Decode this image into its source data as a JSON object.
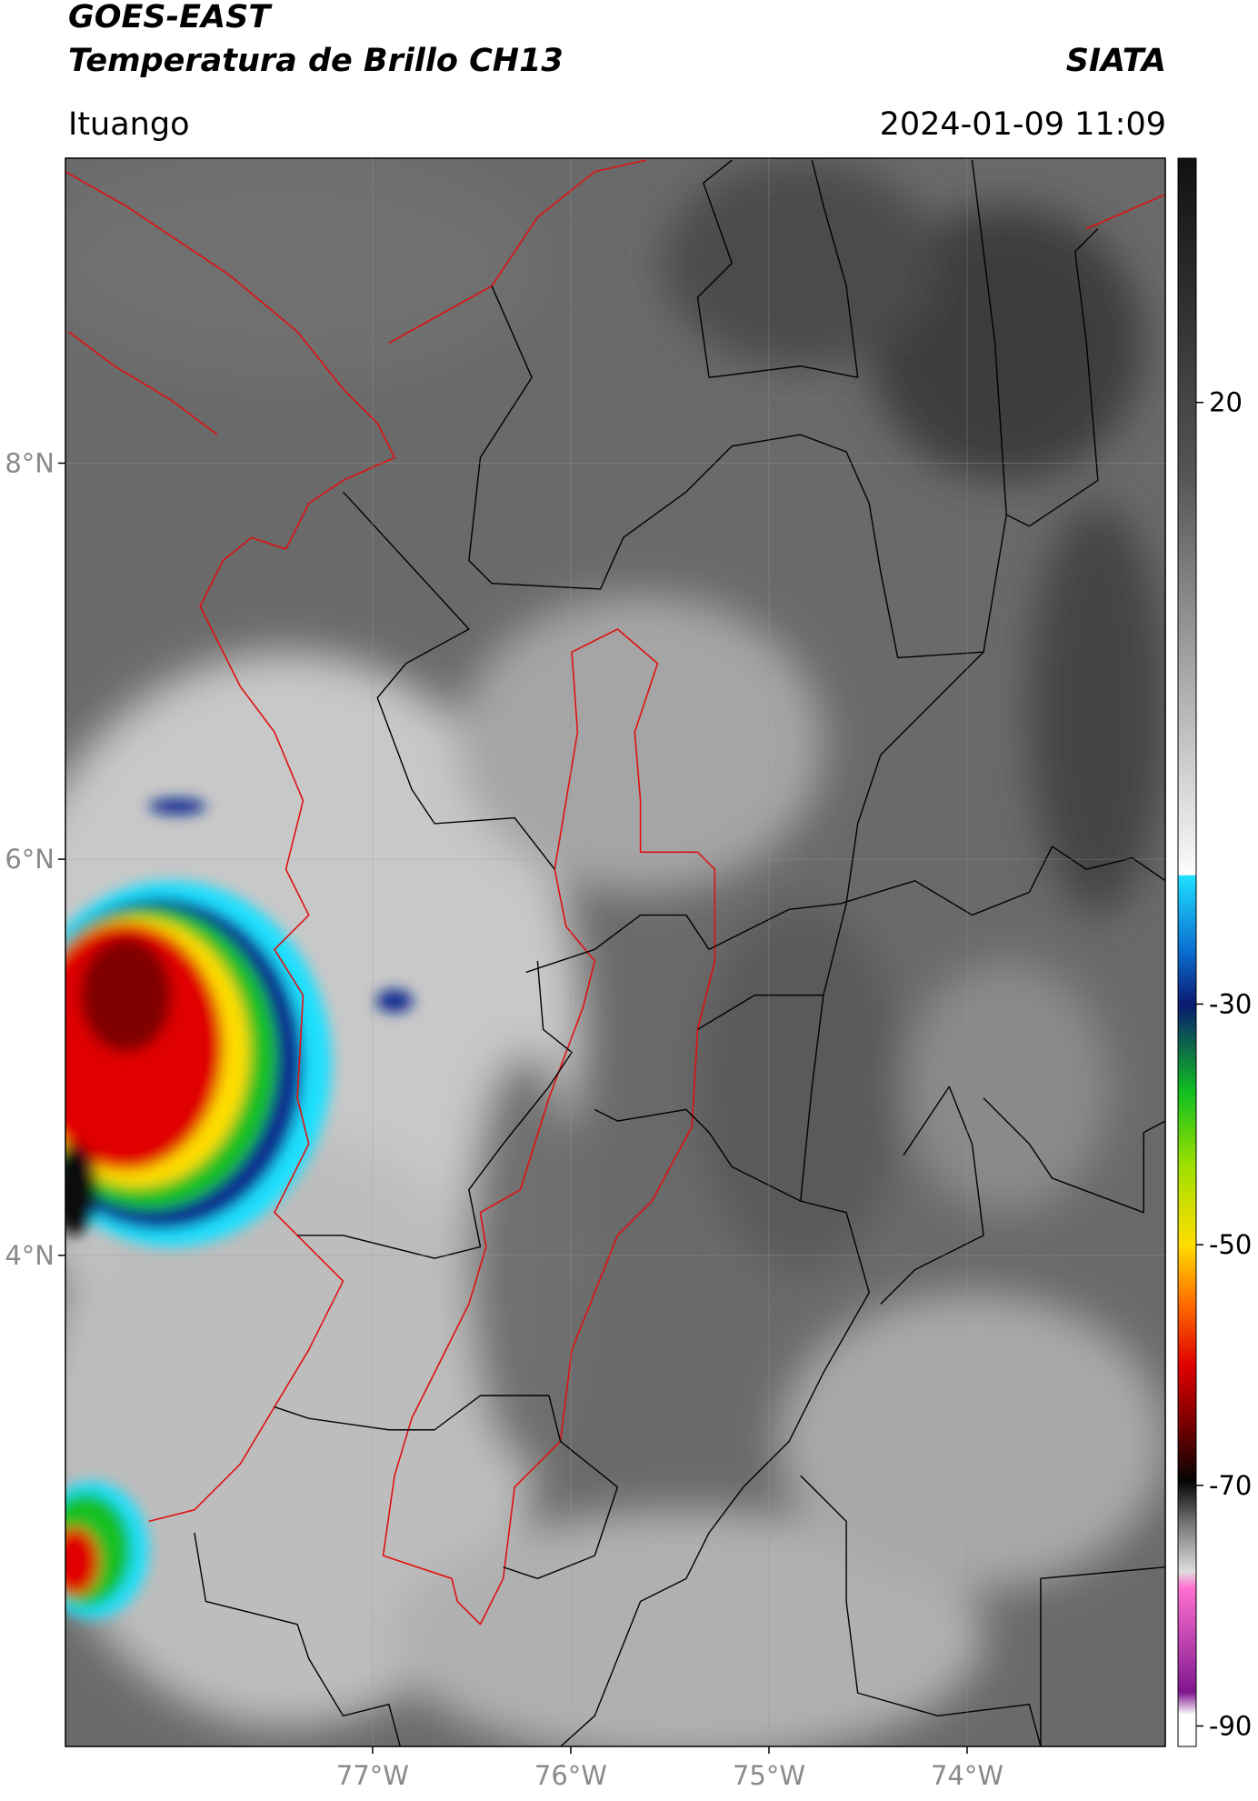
{
  "header": {
    "title": "GOES-EAST",
    "subtitle": "Temperatura de Brillo CH13",
    "brand": "SIATA",
    "location": "Ituango",
    "datetime": "2024-01-09 11:09"
  },
  "map": {
    "lat_range": [
      1.52,
      9.54
    ],
    "lon_range": [
      -78.55,
      -73.0
    ],
    "lat_ticks": [
      {
        "value": 8,
        "label": "8°N"
      },
      {
        "value": 6,
        "label": "6°N"
      },
      {
        "value": 4,
        "label": "4°N"
      }
    ],
    "lon_ticks": [
      {
        "value": -77,
        "label": "77°W"
      },
      {
        "value": -76,
        "label": "76°W"
      },
      {
        "value": -75,
        "label": "75°W"
      },
      {
        "value": -74,
        "label": "74°W"
      }
    ]
  },
  "colorbar": {
    "range": [
      -91.7,
      40.3
    ],
    "ticks": [
      20,
      -30,
      -50,
      -70,
      -90
    ]
  }
}
